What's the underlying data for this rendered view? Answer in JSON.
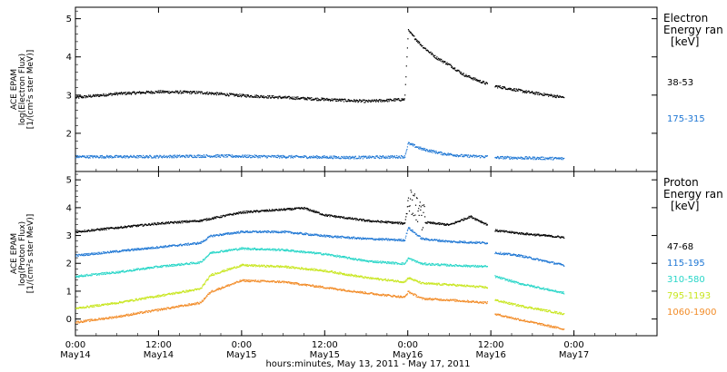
{
  "chart_data": {
    "type": "scatter",
    "xlabel": "hours:minutes, May 13, 2011 - May 17, 2011",
    "x_range_hours": [
      0,
      84
    ],
    "x_ticks": [
      {
        "h": 0,
        "time": "0:00",
        "date": "May14"
      },
      {
        "h": 12,
        "time": "12:00",
        "date": "May14"
      },
      {
        "h": 24,
        "time": "0:00",
        "date": "May15"
      },
      {
        "h": 36,
        "time": "12:00",
        "date": "May15"
      },
      {
        "h": 48,
        "time": "0:00",
        "date": "May16"
      },
      {
        "h": 60,
        "time": "12:00",
        "date": "May16"
      },
      {
        "h": 72,
        "time": "0:00",
        "date": "May17"
      }
    ],
    "panels": [
      {
        "id": "electron",
        "ylabel_lines": [
          "ACE EPAM",
          "log(Electron Flux)",
          "[1/(cm²s ster MeV)]"
        ],
        "ylim": [
          1,
          5.3
        ],
        "yticks": [
          2,
          3,
          4,
          5
        ],
        "legend_title_lines": [
          "Electron",
          "Energy ran",
          "[keV]"
        ],
        "series": [
          {
            "name": "38-53",
            "color": "#000000",
            "points": [
              [
                0,
                2.95
              ],
              [
                6,
                3.05
              ],
              [
                12,
                3.1
              ],
              [
                18,
                3.08
              ],
              [
                24,
                3.0
              ],
              [
                30,
                2.95
              ],
              [
                36,
                2.9
              ],
              [
                42,
                2.85
              ],
              [
                47.5,
                2.9
              ],
              [
                48,
                4.7
              ],
              [
                50,
                4.3
              ],
              [
                52,
                4.0
              ],
              [
                54,
                3.8
              ],
              [
                56,
                3.55
              ],
              [
                58,
                3.4
              ],
              [
                59.5,
                3.3
              ],
              [
                60.5,
                3.25
              ],
              [
                62,
                3.2
              ],
              [
                65,
                3.1
              ],
              [
                68,
                3.02
              ],
              [
                70.5,
                2.95
              ]
            ]
          },
          {
            "name": "175-315",
            "color": "#1f77d4",
            "points": [
              [
                0,
                1.4
              ],
              [
                10,
                1.4
              ],
              [
                20,
                1.42
              ],
              [
                30,
                1.4
              ],
              [
                40,
                1.38
              ],
              [
                47.5,
                1.4
              ],
              [
                48,
                1.75
              ],
              [
                50,
                1.6
              ],
              [
                53,
                1.48
              ],
              [
                56,
                1.42
              ],
              [
                59.5,
                1.4
              ],
              [
                60.5,
                1.38
              ],
              [
                70.5,
                1.35
              ]
            ]
          }
        ]
      },
      {
        "id": "proton",
        "ylabel_lines": [
          "ACE EPAM",
          "log(Proton Flux)",
          "[1/(cm²s ster MeV)]"
        ],
        "ylim": [
          -0.6,
          5.3
        ],
        "yticks": [
          0,
          1,
          2,
          3,
          4,
          5
        ],
        "legend_title_lines": [
          "Proton",
          "Energy ran",
          "[keV]"
        ],
        "series": [
          {
            "name": "47-68",
            "color": "#000000",
            "points": [
              [
                0,
                3.15
              ],
              [
                6,
                3.3
              ],
              [
                12,
                3.45
              ],
              [
                18,
                3.55
              ],
              [
                24,
                3.85
              ],
              [
                30,
                3.95
              ],
              [
                33,
                4.0
              ],
              [
                36,
                3.75
              ],
              [
                42,
                3.55
              ],
              [
                47.5,
                3.45
              ],
              [
                48,
                4.2
              ],
              [
                50,
                3.5
              ],
              [
                54,
                3.4
              ],
              [
                57,
                3.7
              ],
              [
                59.5,
                3.4
              ],
              [
                60.5,
                3.2
              ],
              [
                64,
                3.1
              ],
              [
                70.5,
                2.95
              ]
            ]
          },
          {
            "name": "115-195",
            "color": "#1f77d4",
            "points": [
              [
                0,
                2.3
              ],
              [
                6,
                2.45
              ],
              [
                12,
                2.6
              ],
              [
                18,
                2.75
              ],
              [
                19.5,
                3.0
              ],
              [
                24,
                3.15
              ],
              [
                30,
                3.15
              ],
              [
                36,
                3.0
              ],
              [
                42,
                2.9
              ],
              [
                47.5,
                2.85
              ],
              [
                48,
                3.3
              ],
              [
                50,
                2.9
              ],
              [
                54,
                2.8
              ],
              [
                59.5,
                2.75
              ],
              [
                60.5,
                2.4
              ],
              [
                64,
                2.3
              ],
              [
                70.5,
                1.95
              ]
            ]
          },
          {
            "name": "310-580",
            "color": "#28d6c8",
            "points": [
              [
                0,
                1.55
              ],
              [
                6,
                1.7
              ],
              [
                12,
                1.9
              ],
              [
                18,
                2.05
              ],
              [
                19.5,
                2.4
              ],
              [
                24,
                2.55
              ],
              [
                30,
                2.5
              ],
              [
                36,
                2.35
              ],
              [
                42,
                2.1
              ],
              [
                47.5,
                2.0
              ],
              [
                48,
                2.2
              ],
              [
                50,
                2.0
              ],
              [
                54,
                1.95
              ],
              [
                59.5,
                1.9
              ],
              [
                60.5,
                1.55
              ],
              [
                64,
                1.3
              ],
              [
                70.5,
                0.95
              ]
            ]
          },
          {
            "name": "795-1193",
            "color": "#c8e61e",
            "points": [
              [
                0,
                0.4
              ],
              [
                6,
                0.6
              ],
              [
                12,
                0.85
              ],
              [
                18,
                1.1
              ],
              [
                19.5,
                1.6
              ],
              [
                24,
                1.95
              ],
              [
                30,
                1.9
              ],
              [
                36,
                1.75
              ],
              [
                42,
                1.5
              ],
              [
                47.5,
                1.35
              ],
              [
                48,
                1.5
              ],
              [
                50,
                1.3
              ],
              [
                54,
                1.25
              ],
              [
                59.5,
                1.15
              ],
              [
                60.5,
                0.7
              ],
              [
                64,
                0.5
              ],
              [
                70.5,
                0.2
              ]
            ]
          },
          {
            "name": "1060-1900",
            "color": "#f28c28",
            "points": [
              [
                0,
                -0.1
              ],
              [
                6,
                0.1
              ],
              [
                12,
                0.35
              ],
              [
                18,
                0.6
              ],
              [
                19.5,
                1.0
              ],
              [
                24,
                1.4
              ],
              [
                30,
                1.35
              ],
              [
                36,
                1.15
              ],
              [
                42,
                0.95
              ],
              [
                47.5,
                0.8
              ],
              [
                48,
                1.0
              ],
              [
                50,
                0.75
              ],
              [
                54,
                0.7
              ],
              [
                59.5,
                0.6
              ],
              [
                60.5,
                0.2
              ],
              [
                64,
                0.0
              ],
              [
                70.5,
                -0.35
              ]
            ]
          }
        ]
      }
    ]
  }
}
